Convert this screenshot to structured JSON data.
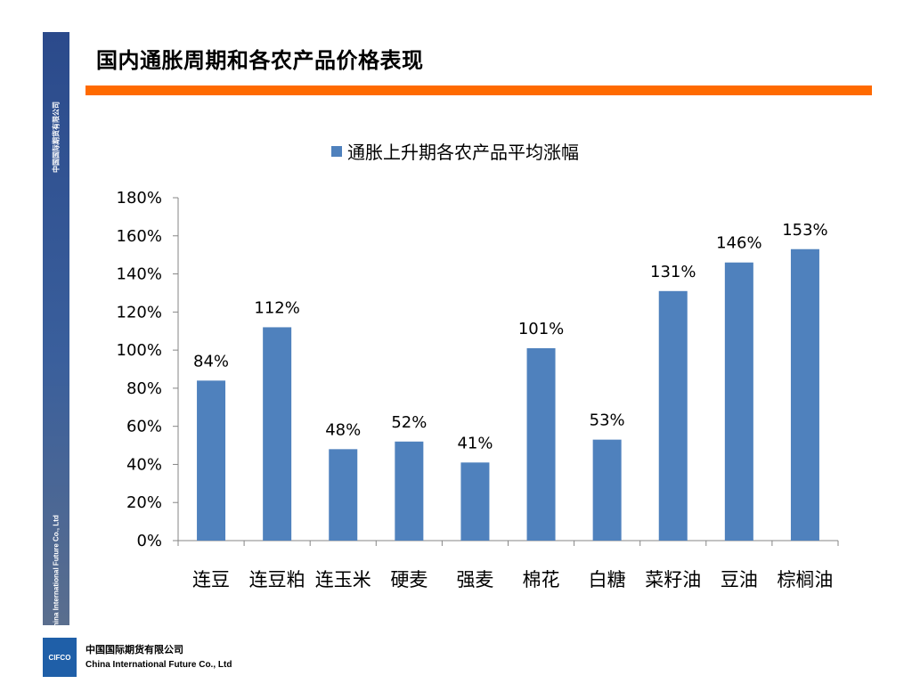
{
  "page": {
    "title": "国内通胀周期和各农产品价格表现",
    "side_text_top": "中国国际期货有限公司",
    "side_text_bottom": "China International Future Co., Ltd"
  },
  "footer": {
    "logo_text": "CIFCO",
    "company_cn": "中国国际期货有限公司",
    "company_en": "China International Future Co., Ltd"
  },
  "colors": {
    "accent_orange": "#ff6a00",
    "bar": "#4f81bd",
    "side_bar": "#2b4a8b"
  },
  "chart_data": {
    "type": "bar",
    "title": "",
    "xlabel": "",
    "ylabel": "",
    "legend": "top",
    "grid": false,
    "ylim": [
      0,
      180
    ],
    "yticks": [
      0,
      20,
      40,
      60,
      80,
      100,
      120,
      140,
      160,
      180
    ],
    "ytick_labels": [
      "0%",
      "20%",
      "40%",
      "60%",
      "80%",
      "100%",
      "120%",
      "140%",
      "160%",
      "180%"
    ],
    "categories": [
      "连豆",
      "连豆粕",
      "连玉米",
      "硬麦",
      "强麦",
      "棉花",
      "白糖",
      "菜籽油",
      "豆油",
      "棕榈油"
    ],
    "series": [
      {
        "name": "通胀上升期各农产品平均涨幅",
        "values": [
          84,
          112,
          48,
          52,
          41,
          101,
          53,
          131,
          146,
          153
        ],
        "labels": [
          "84%",
          "112%",
          "48%",
          "52%",
          "41%",
          "101%",
          "53%",
          "131%",
          "146%",
          "153%"
        ]
      }
    ]
  }
}
